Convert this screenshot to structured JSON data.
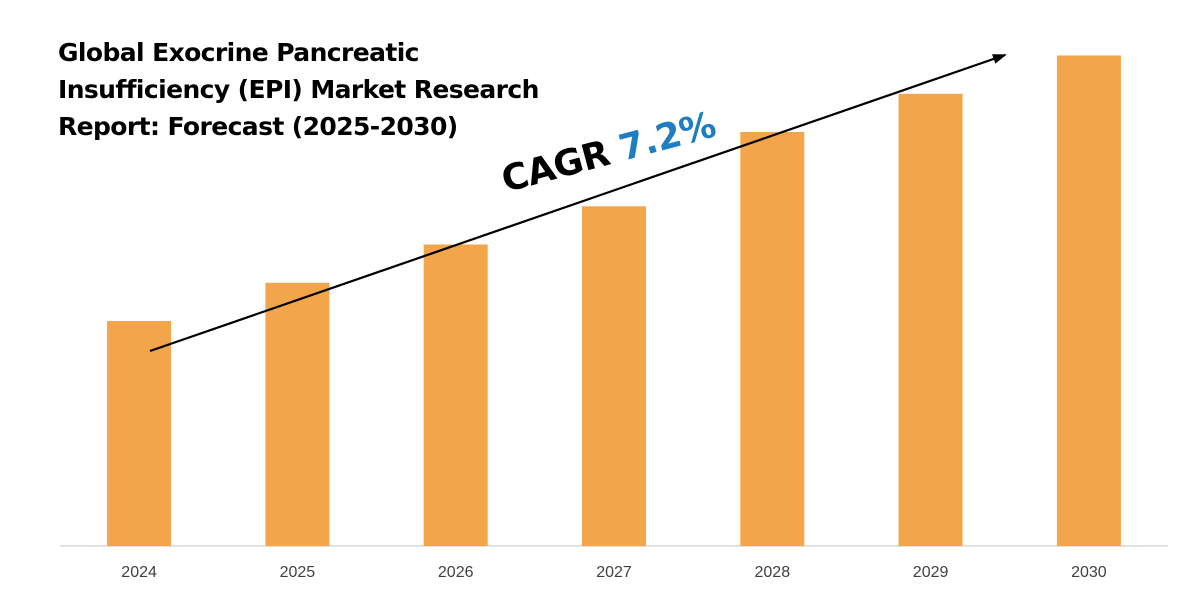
{
  "title_lines": [
    "Global Exocrine Pancreatic",
    "Insufficiency (EPI) Market Research",
    "Report: Forecast (2025-2030)"
  ],
  "cagr": {
    "label": "CAGR",
    "value": "7.2%"
  },
  "colors": {
    "bar": "#f2a54a",
    "axis": "#d9d9d9",
    "arrow": "#000000",
    "cagr_value": "#1f7dc1"
  },
  "chart_data": {
    "type": "bar",
    "title": "Global Exocrine Pancreatic Insufficiency (EPI) Market Research Report: Forecast (2025-2030)",
    "categories": [
      "2024",
      "2025",
      "2026",
      "2027",
      "2028",
      "2029",
      "2030"
    ],
    "values": [
      1.0,
      1.17,
      1.34,
      1.51,
      1.84,
      2.01,
      2.18
    ],
    "value_note": "relative bar heights (no y-axis shown)",
    "xlabel": "",
    "ylabel": "",
    "ylim": [
      0,
      2.4
    ],
    "grid": false,
    "legend": "none",
    "annotation": "CAGR 7.2%"
  }
}
